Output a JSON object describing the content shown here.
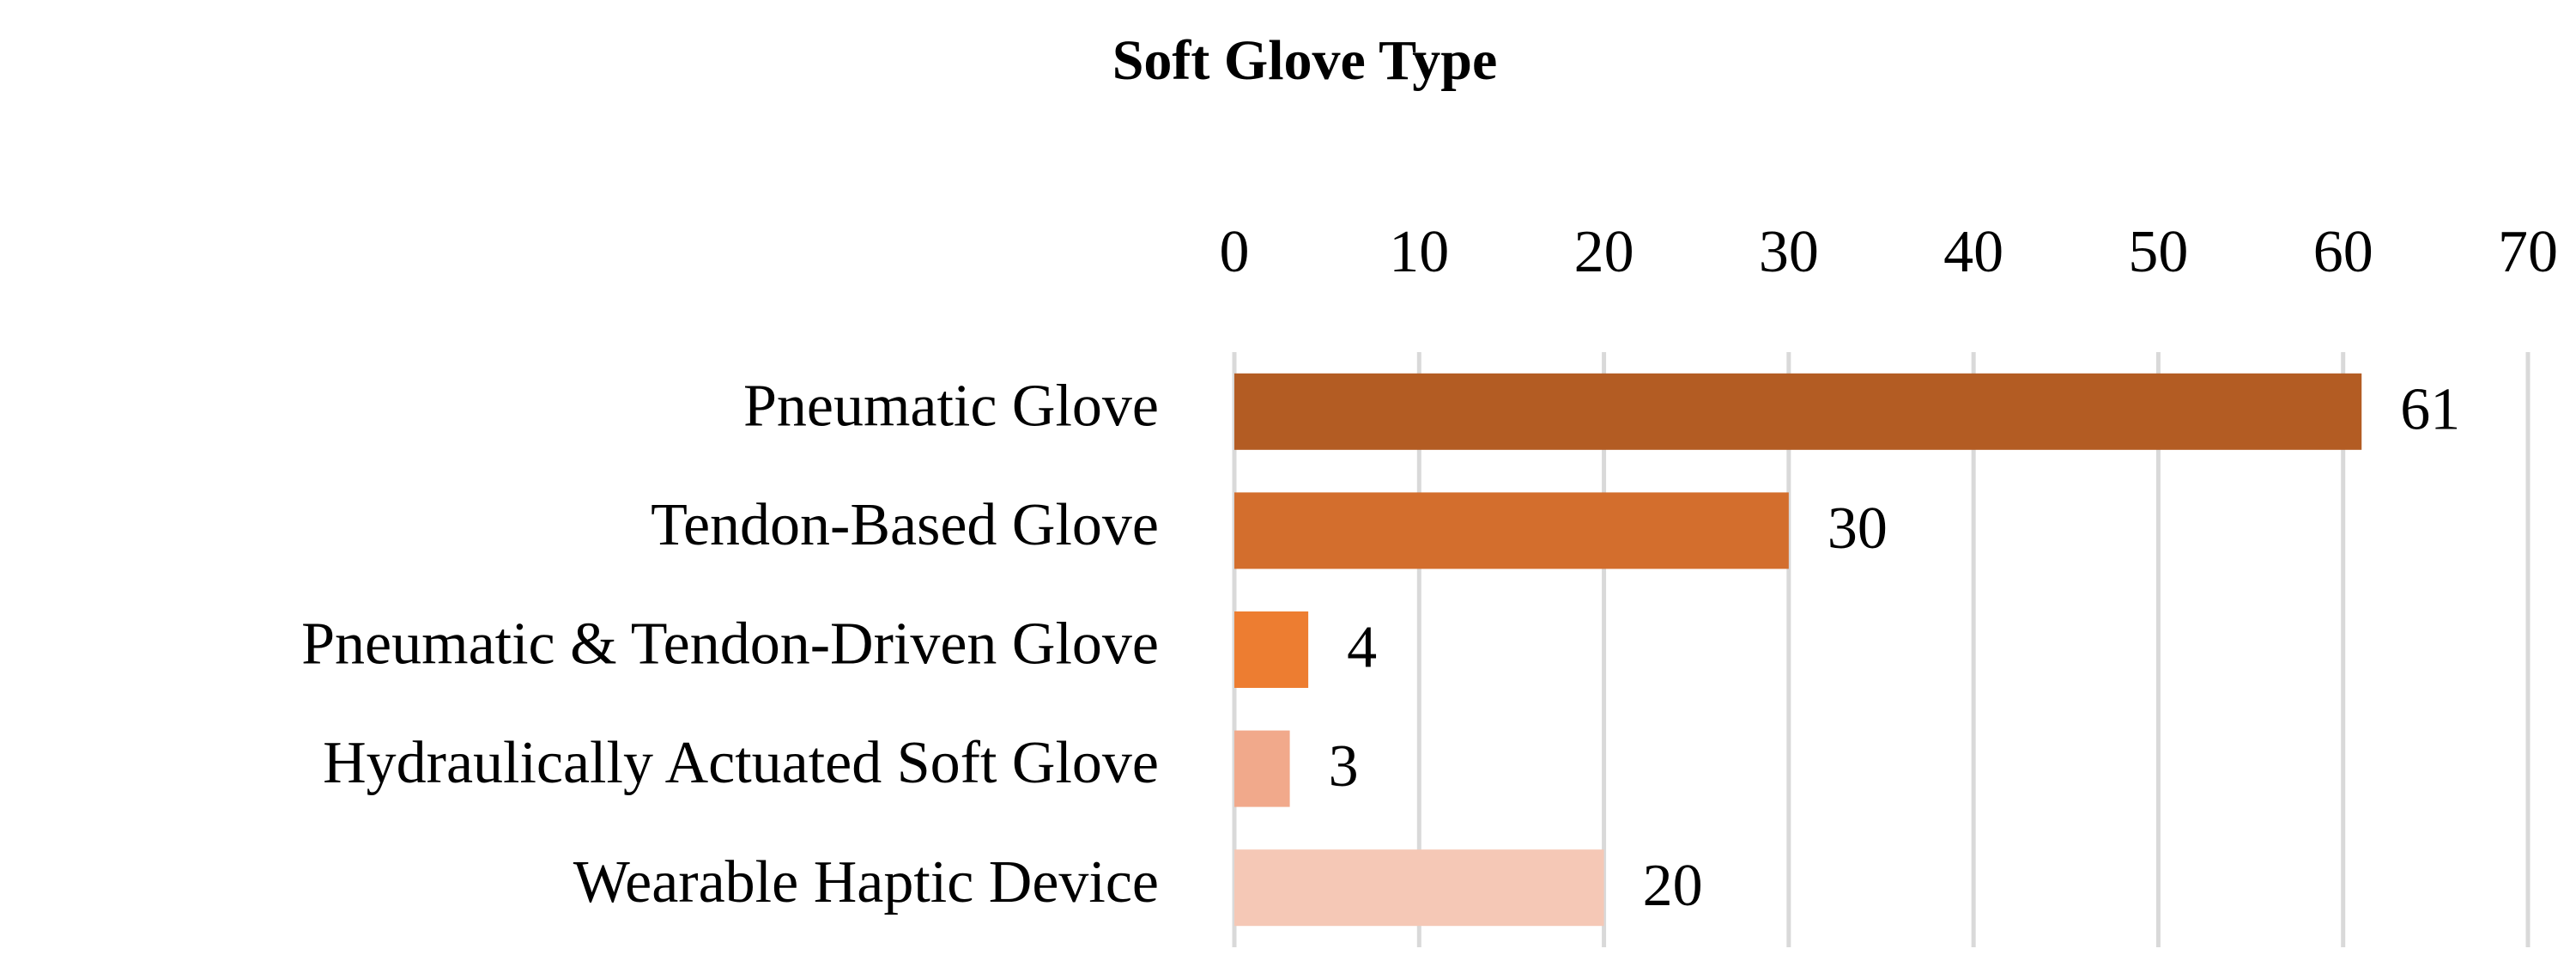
{
  "chart_data": {
    "type": "bar",
    "orientation": "horizontal",
    "title": "Soft Glove Type",
    "categories": [
      "Pneumatic Glove",
      "Tendon-Based Glove",
      "Pneumatic & Tendon-Driven Glove",
      "Hydraulically Actuated Soft Glove",
      "Wearable Haptic Device"
    ],
    "values": [
      61,
      30,
      4,
      3,
      20
    ],
    "colors": [
      "#b35c23",
      "#d36e2d",
      "#ed7d31",
      "#f1a98b",
      "#f5c8b6"
    ],
    "xlim": [
      0,
      70
    ],
    "xticks": [
      0,
      10,
      20,
      30,
      40,
      50,
      60,
      70
    ],
    "grid": true,
    "xaxis_position": "top"
  }
}
